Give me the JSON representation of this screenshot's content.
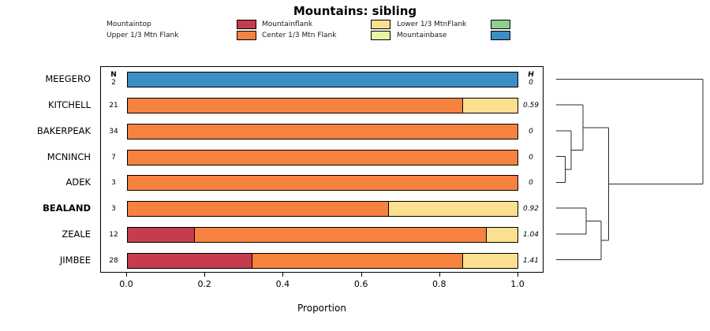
{
  "title": "Mountains: sibling",
  "legend": {
    "items": [
      {
        "label": "Mountaintop",
        "color": "#C43C4E"
      },
      {
        "label": "Upper 1/3 Mtn Flank",
        "color": "#F5823E"
      },
      {
        "label": "Mountainflank",
        "color": "#FBE18F"
      },
      {
        "label": "Center 1/3 Mtn Flank",
        "color": "#EAF4A6"
      },
      {
        "label": "Lower 1/3 MtnFlank",
        "color": "#8FCE90"
      },
      {
        "label": "Mountainbase",
        "color": "#3C8EC3"
      }
    ]
  },
  "chart_data": {
    "type": "bar",
    "orientation": "horizontal",
    "stacked": true,
    "title": "Mountains: sibling",
    "xlabel": "Proportion",
    "xlim": [
      0,
      1
    ],
    "grid": false,
    "legend_position": "top",
    "n_header": "N",
    "h_header": "H",
    "xticks": [
      {
        "value": 0.0,
        "label": "0.0"
      },
      {
        "value": 0.2,
        "label": "0.2"
      },
      {
        "value": 0.4,
        "label": "0.4"
      },
      {
        "value": 0.6,
        "label": "0.6"
      },
      {
        "value": 0.8,
        "label": "0.8"
      },
      {
        "value": 1.0,
        "label": "1.0"
      }
    ],
    "categories": [
      "Mountaintop",
      "Upper 1/3 Mtn Flank",
      "Mountainflank",
      "Center 1/3 Mtn Flank",
      "Lower 1/3 MtnFlank",
      "Mountainbase"
    ],
    "rows": [
      {
        "site": "MEEGERO",
        "n": 2,
        "h": "0",
        "bold": false,
        "segments": [
          {
            "category": "Mountainbase",
            "value": 1.0
          }
        ]
      },
      {
        "site": "KITCHELL",
        "n": 21,
        "h": "0.59",
        "bold": false,
        "segments": [
          {
            "category": "Upper 1/3 Mtn Flank",
            "value": 0.86
          },
          {
            "category": "Mountainflank",
            "value": 0.14
          }
        ]
      },
      {
        "site": "BAKERPEAK",
        "n": 34,
        "h": "0",
        "bold": false,
        "segments": [
          {
            "category": "Upper 1/3 Mtn Flank",
            "value": 1.0
          }
        ]
      },
      {
        "site": "MCNINCH",
        "n": 7,
        "h": "0",
        "bold": false,
        "segments": [
          {
            "category": "Upper 1/3 Mtn Flank",
            "value": 1.0
          }
        ]
      },
      {
        "site": "ADEK",
        "n": 3,
        "h": "0",
        "bold": false,
        "segments": [
          {
            "category": "Upper 1/3 Mtn Flank",
            "value": 1.0
          }
        ]
      },
      {
        "site": "BEALAND",
        "n": 3,
        "h": "0.92",
        "bold": true,
        "segments": [
          {
            "category": "Upper 1/3 Mtn Flank",
            "value": 0.67
          },
          {
            "category": "Mountainflank",
            "value": 0.33
          }
        ]
      },
      {
        "site": "ZEALE",
        "n": 12,
        "h": "1.04",
        "bold": false,
        "segments": [
          {
            "category": "Mountaintop",
            "value": 0.17
          },
          {
            "category": "Upper 1/3 Mtn Flank",
            "value": 0.75
          },
          {
            "category": "Mountainflank",
            "value": 0.08
          }
        ]
      },
      {
        "site": "JIMBEE",
        "n": 28,
        "h": "1.41",
        "bold": false,
        "segments": [
          {
            "category": "Mountaintop",
            "value": 0.32
          },
          {
            "category": "Upper 1/3 Mtn Flank",
            "value": 0.54
          },
          {
            "category": "Mountainflank",
            "value": 0.14
          }
        ]
      }
    ]
  },
  "dendrogram": {
    "tree": {
      "h": 0.98,
      "children": [
        {
          "leaf": "MEEGERO"
        },
        {
          "h": 0.35,
          "children": [
            {
              "h": 0.18,
              "children": [
                {
                  "leaf": "KITCHELL"
                },
                {
                  "h": 0.1,
                  "children": [
                    {
                      "leaf": "BAKERPEAK"
                    },
                    {
                      "h": 0.06,
                      "children": [
                        {
                          "leaf": "MCNINCH"
                        },
                        {
                          "leaf": "ADEK"
                        }
                      ]
                    }
                  ]
                }
              ]
            },
            {
              "h": 0.3,
              "children": [
                {
                  "h": 0.2,
                  "children": [
                    {
                      "leaf": "BEALAND"
                    },
                    {
                      "leaf": "ZEALE"
                    }
                  ]
                },
                {
                  "leaf": "JIMBEE"
                }
              ]
            }
          ]
        }
      ]
    }
  }
}
